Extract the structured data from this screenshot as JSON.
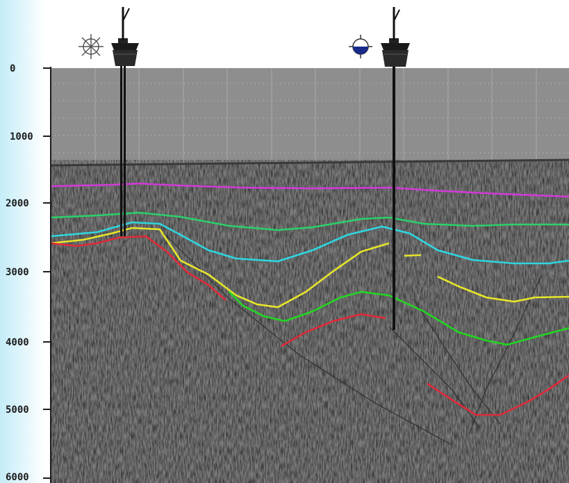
{
  "depth_axis": {
    "ticks": [
      {
        "value": 0,
        "label": "0"
      },
      {
        "value": 1000,
        "label": "1000"
      },
      {
        "value": 2000,
        "label": "2000"
      },
      {
        "value": 3000,
        "label": "3000"
      },
      {
        "value": 4000,
        "label": "4000"
      },
      {
        "value": 5000,
        "label": "5000"
      },
      {
        "value": 6000,
        "label": "6000"
      }
    ]
  },
  "wells": [
    {
      "symbol": "dry-hole-icon",
      "fill": "none"
    },
    {
      "symbol": "oil-well-icon",
      "fill": "#1a2a8c"
    }
  ],
  "horizons": [
    {
      "color": "#d23ad8"
    },
    {
      "color": "#2bd06a"
    },
    {
      "color": "#2fd6df"
    },
    {
      "color": "#e6e62a"
    },
    {
      "color": "#22d622"
    },
    {
      "color": "#e02a3a"
    }
  ],
  "colors": {
    "water_column": "#8e8e8e",
    "seismic_base": "#7b7b7b"
  }
}
